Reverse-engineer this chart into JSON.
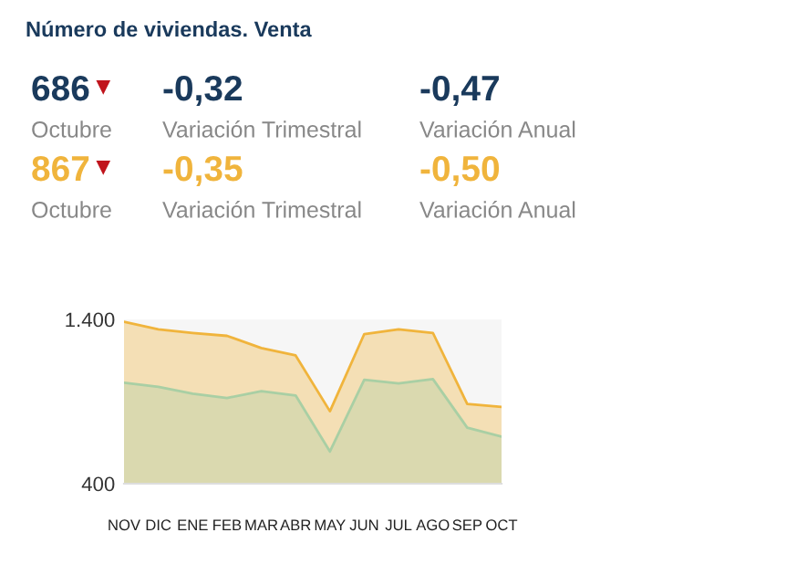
{
  "chart_data": {
    "type": "area",
    "title": "Número de viviendas. Venta",
    "annotations": [
      "686",
      "Octubre",
      "-0,32",
      "Variación Trimestral",
      "-0,47",
      "Variación Anual",
      "867",
      "Octubre",
      "-0,35",
      "Variación Trimestral",
      "-0,50",
      "Variación Anual"
    ],
    "categories": [
      "NOV",
      "DIC",
      "ENE",
      "FEB",
      "MAR",
      "ABR",
      "MAY",
      "JUN",
      "JUL",
      "AGO",
      "SEP",
      "OCT"
    ],
    "series": [
      {
        "color": "#f0b43c",
        "values": [
          1385,
          1340,
          1318,
          1300,
          1226,
          1181,
          841,
          1311,
          1340,
          1318,
          885,
          867
        ]
      },
      {
        "color": "#a9cfa4",
        "values": [
          1015,
          989,
          948,
          922,
          963,
          937,
          596,
          1033,
          1011,
          1037,
          741,
          686
        ]
      }
    ],
    "ylim": [
      400,
      1400
    ],
    "yticks": [
      {
        "value": 400,
        "label": "400"
      },
      {
        "value": 1400,
        "label": "1.400"
      }
    ],
    "grid": false,
    "legend": false
  }
}
